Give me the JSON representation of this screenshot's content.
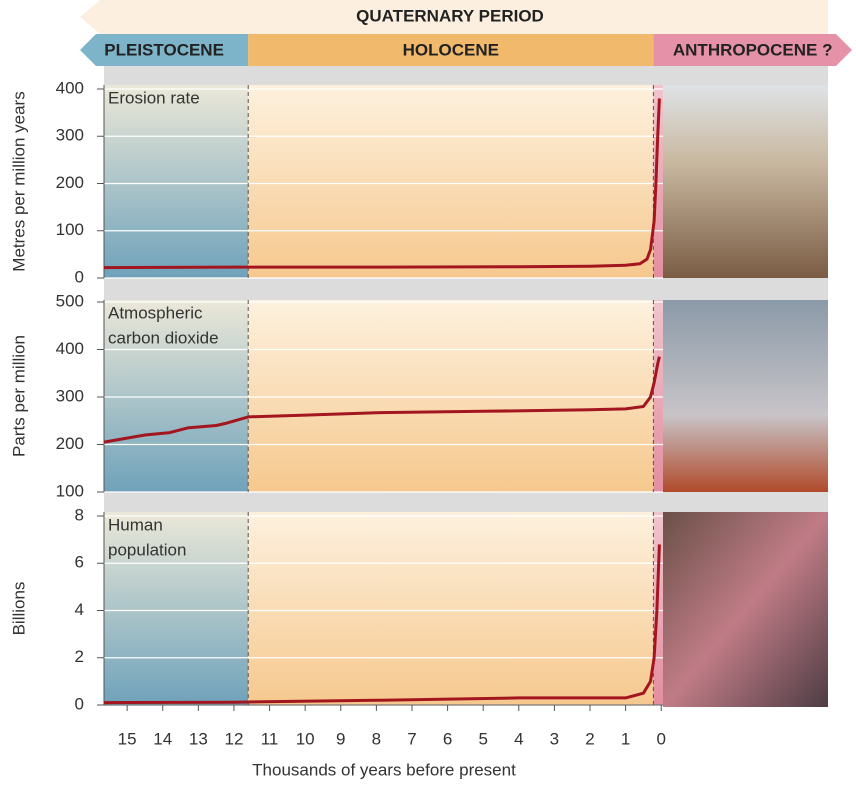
{
  "header": {
    "title": "QUATERNARY PERIOD",
    "epochs": [
      {
        "name": "PLEISTOCENE",
        "from": 15.65,
        "to": 11.6,
        "color": "#7db4c9"
      },
      {
        "name": "HOLOCENE",
        "from": 11.6,
        "to": 0.22,
        "color": "#f0b96c"
      },
      {
        "name": "ANTHROPOCENE ?",
        "from": 0.22,
        "to": -0.05,
        "color": "#e592a8"
      }
    ]
  },
  "chart_data": [
    {
      "type": "line",
      "ylabel": "Metres per million years",
      "annotation": [
        "Erosion rate"
      ],
      "xlim": [
        15.65,
        -0.05
      ],
      "ylim": [
        0,
        400
      ],
      "yticks": [
        0,
        100,
        200,
        300,
        400
      ],
      "x": [
        15.65,
        12,
        8,
        4,
        2,
        1,
        0.6,
        0.4,
        0.3,
        0.2,
        0.15,
        0.1,
        0.05
      ],
      "series": [
        {
          "color": "#a3161f",
          "values": [
            22,
            23,
            23,
            24,
            25,
            27,
            30,
            40,
            60,
            120,
            200,
            300,
            380
          ]
        }
      ]
    },
    {
      "type": "line",
      "ylabel": "Parts per million",
      "annotation": [
        "Atmospheric",
        "carbon dioxide"
      ],
      "xlim": [
        15.65,
        -0.05
      ],
      "ylim": [
        100,
        500
      ],
      "yticks": [
        100,
        200,
        300,
        400,
        500
      ],
      "x": [
        15.65,
        14.5,
        13.8,
        13.3,
        12.5,
        12.2,
        11.6,
        10,
        8,
        5,
        2,
        1,
        0.5,
        0.3,
        0.2,
        0.1,
        0.05
      ],
      "series": [
        {
          "color": "#a3161f",
          "values": [
            205,
            220,
            225,
            235,
            240,
            245,
            258,
            262,
            267,
            270,
            273,
            275,
            280,
            300,
            330,
            370,
            385
          ]
        }
      ]
    },
    {
      "type": "line",
      "ylabel": "Billions",
      "annotation": [
        "Human",
        "population"
      ],
      "xlim": [
        15.65,
        -0.05
      ],
      "ylim": [
        0,
        8
      ],
      "yticks": [
        0,
        2,
        4,
        6,
        8
      ],
      "xticks": [
        15,
        14,
        13,
        12,
        11,
        10,
        9,
        8,
        7,
        6,
        5,
        4,
        3,
        2,
        1,
        0
      ],
      "xlabel": "Thousands of years before present",
      "x": [
        15.65,
        12,
        8,
        4,
        2,
        1,
        0.5,
        0.3,
        0.2,
        0.12,
        0.07,
        0.05
      ],
      "series": [
        {
          "color": "#a3161f",
          "values": [
            0.1,
            0.12,
            0.2,
            0.3,
            0.3,
            0.3,
            0.5,
            1,
            2,
            4,
            6,
            6.8
          ]
        }
      ]
    }
  ]
}
